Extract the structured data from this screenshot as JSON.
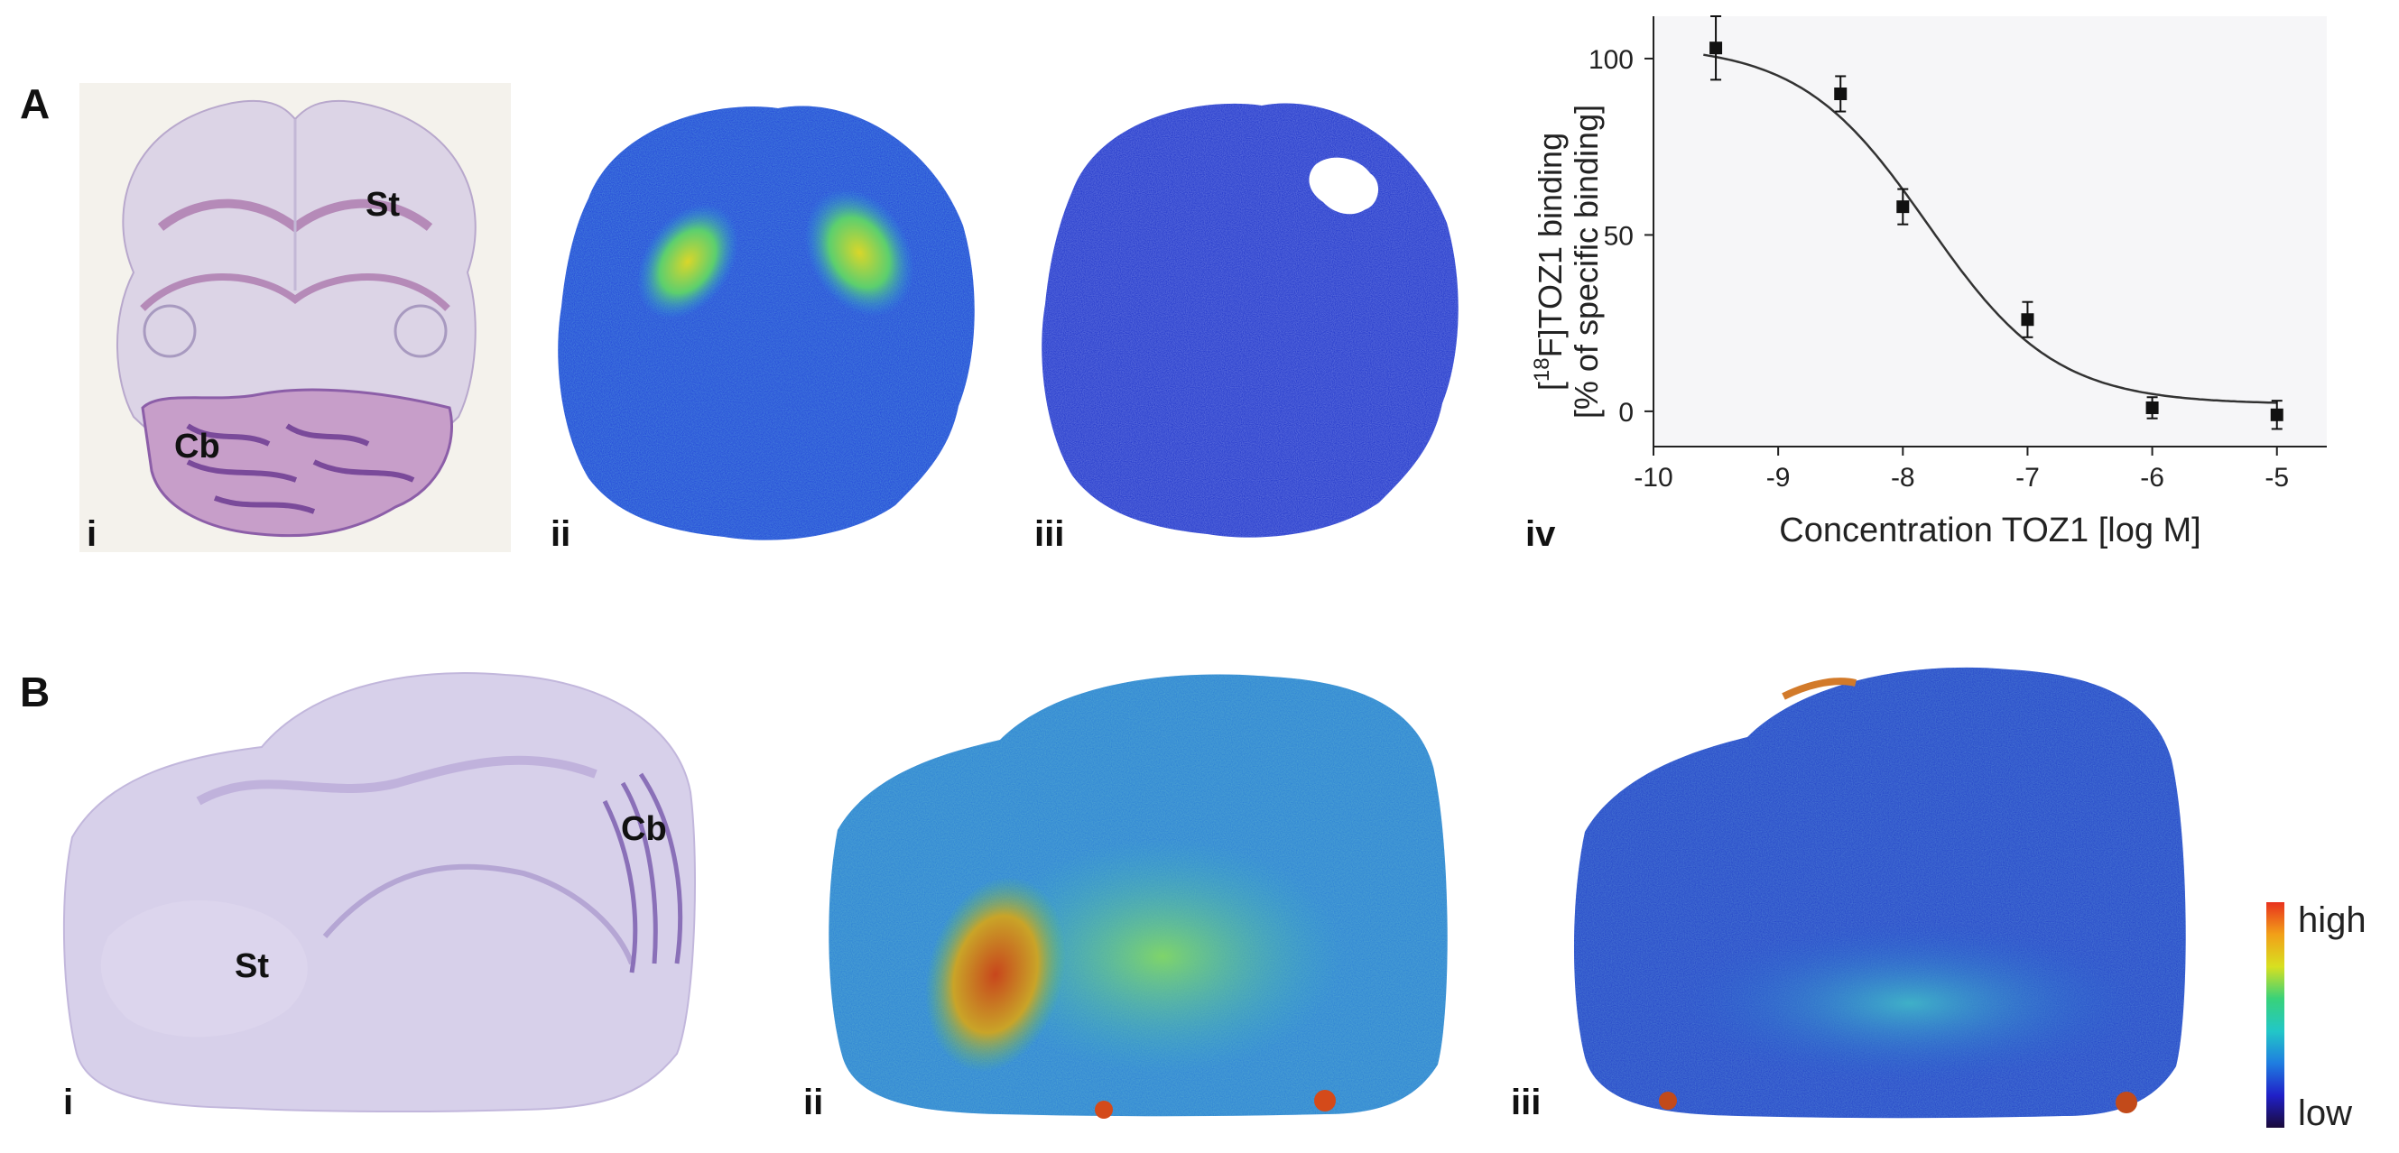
{
  "panels": {
    "A": {
      "letter": "A",
      "subpanels": [
        {
          "label": "i",
          "regions": [
            "St",
            "Cb"
          ]
        },
        {
          "label": "ii"
        },
        {
          "label": "iii"
        },
        {
          "label": "iv"
        }
      ]
    },
    "B": {
      "letter": "B",
      "subpanels": [
        {
          "label": "i",
          "regions": [
            "Cb",
            "St"
          ]
        },
        {
          "label": "ii"
        },
        {
          "label": "iii"
        }
      ]
    }
  },
  "colorbar": {
    "high": "high",
    "low": "low",
    "stops": [
      "#1a0a3a",
      "#2020c8",
      "#1f7de0",
      "#22c7c7",
      "#38d27a",
      "#d8e020",
      "#f2a018",
      "#e8321e"
    ]
  },
  "chart_data": {
    "type": "scatter",
    "ylabel_line1_prefix": "[",
    "ylabel_sup": "18",
    "ylabel_line1_suffix": "F]TOZ1  binding",
    "ylabel_line2": "[% of specific binding]",
    "xlabel": "Concentration  TOZ1  [log M]",
    "x_ticks": [
      -10,
      -9,
      -8,
      -7,
      -6,
      -5
    ],
    "y_ticks": [
      0,
      50,
      100
    ],
    "xlim": [
      -10,
      -4.6
    ],
    "ylim": [
      -10,
      112
    ],
    "points": [
      {
        "x": -9.5,
        "y": 103,
        "err": 9
      },
      {
        "x": -8.5,
        "y": 90,
        "err": 5
      },
      {
        "x": -8.0,
        "y": 58,
        "err": 5
      },
      {
        "x": -7.0,
        "y": 26,
        "err": 5
      },
      {
        "x": -6.0,
        "y": 1,
        "err": 3
      },
      {
        "x": -5.0,
        "y": -1,
        "err": 4
      }
    ],
    "fit": {
      "top": 104,
      "bottom": 2,
      "log_ic50": -7.8,
      "hill": 0.85
    }
  }
}
